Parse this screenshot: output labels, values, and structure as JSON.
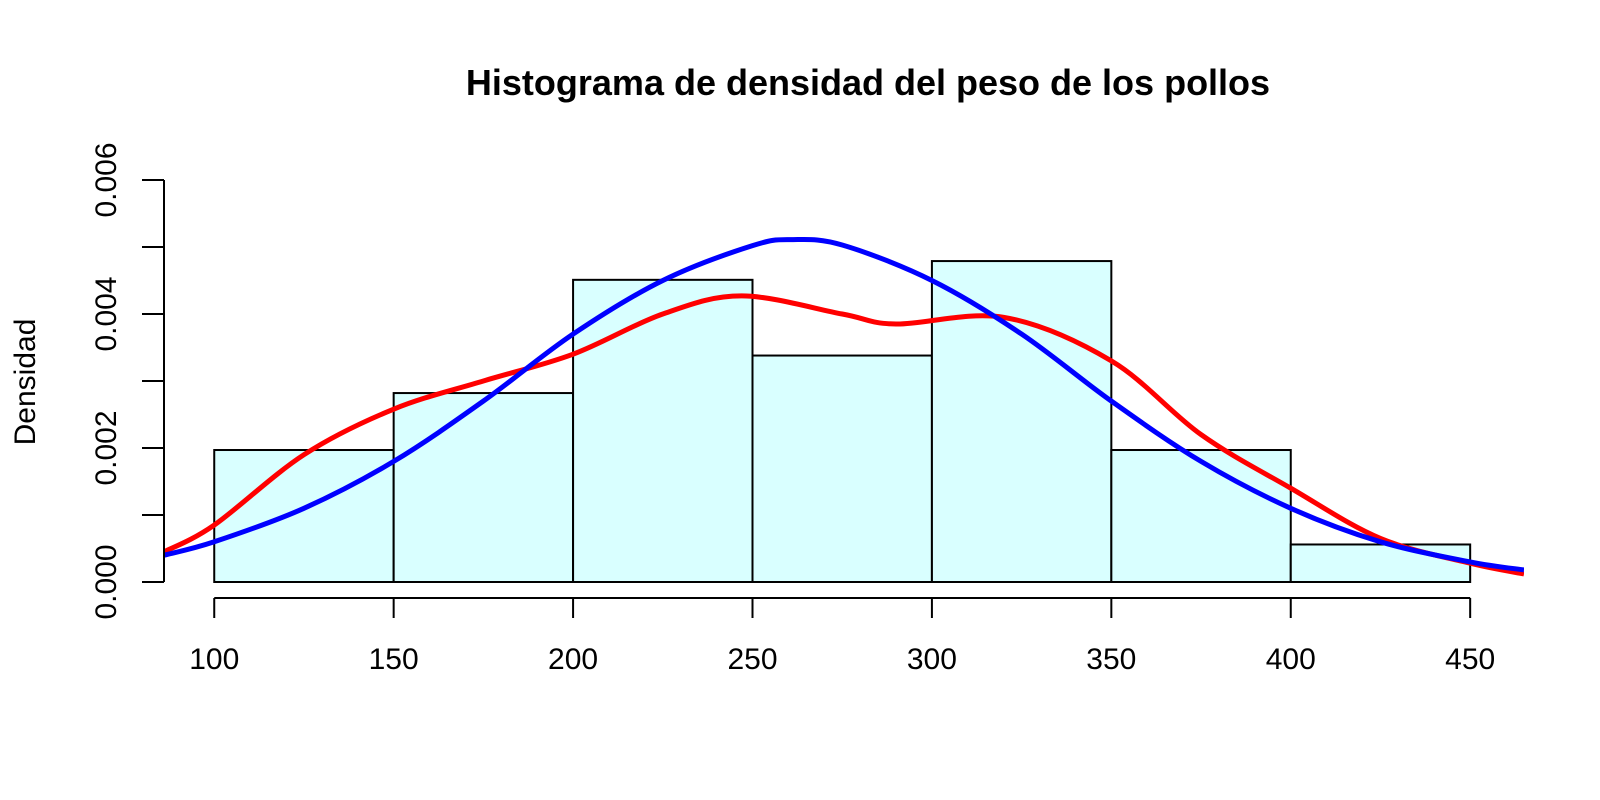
{
  "chart_data": {
    "type": "histogram",
    "title": "Histograma de densidad del peso de los pollos",
    "xlabel": "",
    "ylabel": "Densidad",
    "xlim": [
      86,
      465
    ],
    "ylim": [
      0,
      0.006
    ],
    "x_ticks": [
      100,
      150,
      200,
      250,
      300,
      350,
      400,
      450
    ],
    "x_tick_labels": [
      "100",
      "150",
      "200",
      "250",
      "300",
      "350",
      "400",
      "450"
    ],
    "y_ticks": [
      0,
      0.001,
      0.002,
      0.003,
      0.004,
      0.005,
      0.006
    ],
    "y_tick_labels": [
      "0.000",
      "",
      "0.002",
      "",
      "0.004",
      "",
      "0.006"
    ],
    "bins": [
      {
        "from": 100,
        "to": 150,
        "density": 0.00197
      },
      {
        "from": 150,
        "to": 200,
        "density": 0.00282
      },
      {
        "from": 200,
        "to": 250,
        "density": 0.00451
      },
      {
        "from": 250,
        "to": 300,
        "density": 0.00338
      },
      {
        "from": 300,
        "to": 350,
        "density": 0.00479
      },
      {
        "from": 350,
        "to": 400,
        "density": 0.00197
      },
      {
        "from": 400,
        "to": 450,
        "density": 0.00056
      }
    ],
    "bar_color": "#d9ffff",
    "series": [
      {
        "color": "#ff0000",
        "x": [
          86,
          100,
          125,
          150,
          175,
          200,
          225,
          247,
          275,
          290,
          320,
          350,
          375,
          400,
          425,
          450,
          465
        ],
        "y": [
          0.00045,
          0.00085,
          0.0019,
          0.00258,
          0.003,
          0.0034,
          0.004,
          0.00427,
          0.004,
          0.00385,
          0.00395,
          0.0033,
          0.0022,
          0.0014,
          0.00065,
          0.00028,
          0.00012
        ]
      },
      {
        "color": "#0000ff",
        "x": [
          86,
          100,
          125,
          150,
          175,
          200,
          225,
          250,
          261,
          275,
          300,
          325,
          350,
          375,
          400,
          425,
          450,
          465
        ],
        "y": [
          0.0004,
          0.0006,
          0.0011,
          0.0018,
          0.0027,
          0.0037,
          0.0045,
          0.00502,
          0.00511,
          0.00503,
          0.0045,
          0.0037,
          0.0027,
          0.0018,
          0.0011,
          0.0006,
          0.0003,
          0.00018
        ]
      }
    ]
  }
}
